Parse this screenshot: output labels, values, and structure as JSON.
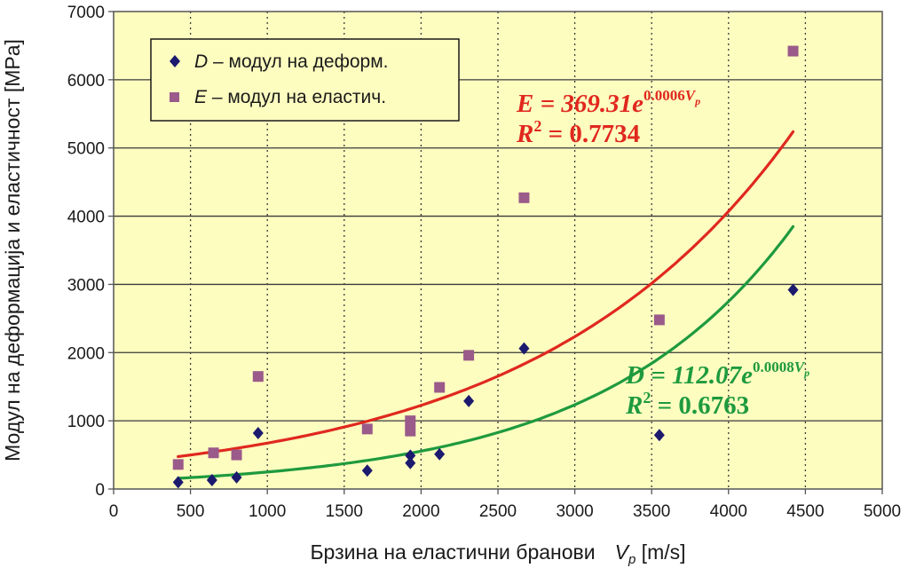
{
  "chart_data": {
    "type": "scatter",
    "xlabel": "Брзина на еластични бранови",
    "xlabel_var": "V",
    "xlabel_sub": "p",
    "xlabel_unit": " [m/s]",
    "ylabel": "Модул на деформација и еластичност [MPa]",
    "xlim": [
      0,
      5000
    ],
    "ylim": [
      0,
      7000
    ],
    "xticks": [
      0,
      500,
      1000,
      1500,
      2000,
      2500,
      3000,
      3500,
      4000,
      4500,
      5000
    ],
    "yticks": [
      0,
      1000,
      2000,
      3000,
      4000,
      5000,
      6000,
      7000
    ],
    "grid": {
      "x": "dotted",
      "y": "solid"
    },
    "legend": {
      "placement": "top-left"
    },
    "series": [
      {
        "key": "D",
        "name_var": "D",
        "name": " – модул на деформ.",
        "marker": "diamond",
        "color": "#1c1a6e",
        "points": [
          [
            420,
            100
          ],
          [
            640,
            130
          ],
          [
            800,
            170
          ],
          [
            940,
            820
          ],
          [
            1650,
            270
          ],
          [
            1930,
            380
          ],
          [
            1930,
            490
          ],
          [
            2120,
            510
          ],
          [
            2310,
            1290
          ],
          [
            2670,
            2060
          ],
          [
            3550,
            790
          ],
          [
            4420,
            2920
          ]
        ],
        "trend": {
          "model": "exponential",
          "a": 112.07,
          "b": 0.0008,
          "x_range": [
            420,
            4420
          ],
          "eq_base": "D = 112.07e",
          "eq_exp": "0.0008",
          "eq_exp_var": "V",
          "eq_exp_sub": "p",
          "r2_label": "R",
          "r2_sup": "2",
          "r2_value": " = 0.6763",
          "color": "#1e9a3e"
        }
      },
      {
        "key": "E",
        "name_var": "E",
        "name": " – модул на еластич.",
        "marker": "square",
        "color": "#9a5a8a",
        "points": [
          [
            420,
            360
          ],
          [
            650,
            530
          ],
          [
            800,
            500
          ],
          [
            940,
            1650
          ],
          [
            1650,
            880
          ],
          [
            1930,
            1000
          ],
          [
            1930,
            850
          ],
          [
            2120,
            1490
          ],
          [
            2310,
            1960
          ],
          [
            2670,
            4270
          ],
          [
            3550,
            2480
          ],
          [
            4420,
            6420
          ]
        ],
        "trend": {
          "model": "exponential",
          "a": 369.31,
          "b": 0.0006,
          "x_range": [
            420,
            4420
          ],
          "eq_base": "E = 369.31e",
          "eq_exp": "0.0006",
          "eq_exp_var": "V",
          "eq_exp_sub": "p",
          "r2_label": "R",
          "r2_sup": "2",
          "r2_value": " = 0.7734",
          "color": "#e0281e"
        }
      }
    ]
  }
}
